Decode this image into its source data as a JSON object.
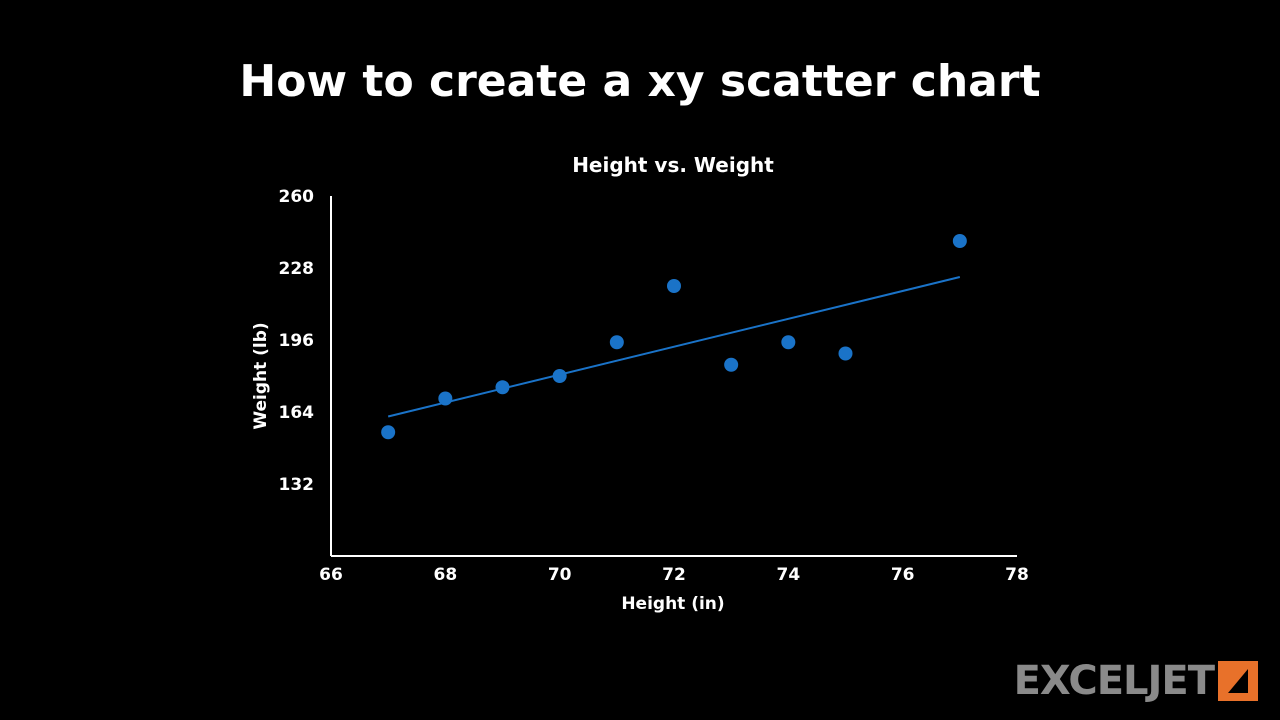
{
  "slide": {
    "title": "How to create a xy scatter chart"
  },
  "brand": {
    "logo_text": "EXCELJET",
    "accent_color": "#e8712a",
    "text_color": "#8a8a8a"
  },
  "chart_data": {
    "type": "scatter",
    "title": "Height vs. Weight",
    "xlabel": "Height (in)",
    "ylabel": "Weight (lb)",
    "xlim": [
      66,
      78
    ],
    "ylim": [
      100,
      260
    ],
    "xticks": [
      66,
      68,
      70,
      72,
      74,
      76,
      78
    ],
    "yticks": [
      132,
      164,
      196,
      228,
      260
    ],
    "grid": false,
    "legend": "none",
    "series": [
      {
        "color": "#1a73c8",
        "points": [
          {
            "x": 67,
            "y": 155
          },
          {
            "x": 68,
            "y": 170
          },
          {
            "x": 69,
            "y": 175
          },
          {
            "x": 70,
            "y": 180
          },
          {
            "x": 71,
            "y": 195
          },
          {
            "x": 72,
            "y": 220
          },
          {
            "x": 73,
            "y": 185
          },
          {
            "x": 74,
            "y": 195
          },
          {
            "x": 75,
            "y": 190
          },
          {
            "x": 77,
            "y": 240
          }
        ]
      }
    ],
    "trendline": {
      "type": "linear",
      "color": "#1a73c8",
      "from": {
        "x": 67,
        "y": 162
      },
      "to": {
        "x": 77,
        "y": 224
      }
    }
  }
}
